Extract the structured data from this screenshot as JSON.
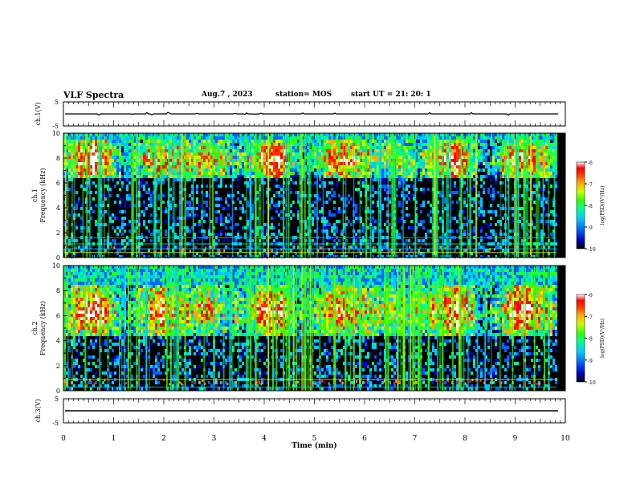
{
  "header": {
    "title": "VLF Spectra",
    "date": "Aug.7 , 2023",
    "station": "station= MOS",
    "start_ut": "start UT =   21: 20: 1"
  },
  "colors": {
    "background": "#000000",
    "colormap": [
      "#000000",
      "#0000c8",
      "#0064ff",
      "#00c8ff",
      "#00ff96",
      "#32ff00",
      "#c8ff00",
      "#ffaa00",
      "#ff3200",
      "#ff0000",
      "#ffffff"
    ]
  },
  "chart_data": [
    {
      "type": "line",
      "name": "ch1-waveform",
      "ylabel": "ch.1(V)",
      "ylim": [
        -5,
        5
      ],
      "yticks": [
        "5",
        "-5"
      ],
      "xlim": [
        0,
        10
      ],
      "baseline": 0
    },
    {
      "type": "heatmap",
      "name": "ch1-spectrogram",
      "ylabel_top": "ch.1",
      "ylabel": "Frequency (kHz)",
      "ylim": [
        0,
        10
      ],
      "yticks": [
        "0",
        "2",
        "4",
        "6",
        "8",
        "10"
      ],
      "xlim": [
        0,
        10
      ],
      "emission_band_khz": [
        6.5,
        9.5
      ],
      "colorbar": {
        "label": "log(PSD)(V²/Hz)",
        "range": [
          -10,
          -6
        ],
        "ticks": [
          "-6",
          "-7",
          "-8",
          "-9",
          "-10"
        ]
      }
    },
    {
      "type": "heatmap",
      "name": "ch2-spectrogram",
      "ylabel_top": "ch.2",
      "ylabel": "Frequency (kHz)",
      "ylim": [
        0,
        10
      ],
      "yticks": [
        "0",
        "2",
        "4",
        "6",
        "8",
        "10"
      ],
      "xlim": [
        0,
        10
      ],
      "emission_band_khz": [
        4.5,
        8.5
      ],
      "colorbar": {
        "label": "log(PSD)(V²/Hz)",
        "range": [
          -10,
          -6
        ],
        "ticks": [
          "-6",
          "-7",
          "-8",
          "-9",
          "-10"
        ]
      }
    },
    {
      "type": "line",
      "name": "ch3-waveform",
      "ylabel": "ch.3(V)",
      "ylim": [
        -5,
        5
      ],
      "yticks": [
        "5",
        "-5"
      ],
      "xlim": [
        0,
        10
      ],
      "baseline": 0
    }
  ],
  "x_axis": {
    "label": "Time (min)",
    "ticks": [
      "0",
      "1",
      "2",
      "3",
      "4",
      "5",
      "6",
      "7",
      "8",
      "9",
      "10"
    ],
    "range": [
      0,
      10
    ]
  }
}
